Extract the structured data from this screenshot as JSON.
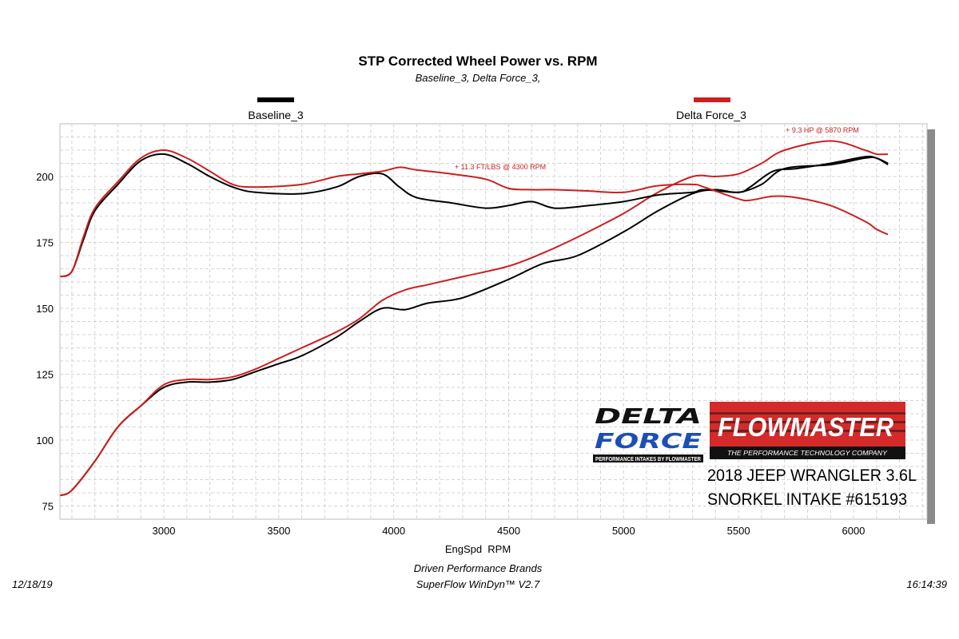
{
  "chart_data": {
    "type": "line",
    "title": "STP Corrected Wheel Power vs. RPM",
    "subtitle": "Baseline_3, Delta Force_3,",
    "xlabel": "EngSpd  RPM",
    "ylabel": "",
    "xlim": [
      2548,
      6320
    ],
    "ylim": [
      70,
      220
    ],
    "grid": true,
    "legend_position": "top",
    "x_ticks": [
      "3000",
      "3500",
      "4000",
      "4500",
      "5000",
      "5500",
      "6000"
    ],
    "y_ticks": [
      "75",
      "100",
      "125",
      "150",
      "175",
      "200"
    ],
    "legend": [
      {
        "name": "Baseline_3",
        "color": "#000000"
      },
      {
        "name": "Delta Force_3",
        "color": "#cc1f1f"
      }
    ],
    "series": [
      {
        "name": "Baseline_3",
        "color": "#000000",
        "curve": "torque",
        "x": [
          2550,
          2600,
          2650,
          2700,
          2800,
          2900,
          3000,
          3100,
          3200,
          3300,
          3400,
          3600,
          3750,
          3850,
          3950,
          4025,
          4100,
          4250,
          4400,
          4500,
          4600,
          4700,
          4850,
          5000,
          5150,
          5300,
          5350,
          5500,
          5550,
          5650,
          5750,
          5900,
          6050,
          6100,
          6150
        ],
        "y": [
          162,
          164,
          176,
          187,
          197,
          206,
          208.5,
          205,
          200,
          196,
          194,
          193.5,
          196,
          200,
          201,
          196,
          192,
          190,
          188,
          189,
          190.5,
          188,
          189,
          190.5,
          193,
          194,
          195,
          194,
          196,
          202,
          203,
          205,
          207.5,
          207,
          205
        ]
      },
      {
        "name": "Delta Force_3",
        "color": "#cc1f1f",
        "curve": "torque",
        "x": [
          2550,
          2600,
          2650,
          2700,
          2800,
          2900,
          3000,
          3100,
          3200,
          3300,
          3400,
          3600,
          3750,
          3850,
          3950,
          4025,
          4100,
          4250,
          4400,
          4500,
          4600,
          4700,
          4850,
          5000,
          5150,
          5300,
          5350,
          5500,
          5550,
          5650,
          5750,
          5900,
          6050,
          6100,
          6150
        ],
        "y": [
          162,
          164,
          177,
          188,
          198,
          207,
          210,
          207,
          202,
          197,
          196,
          197,
          200,
          201,
          202,
          203.5,
          202.5,
          201,
          199,
          195.5,
          195,
          195,
          194.5,
          194,
          196.5,
          197,
          196,
          191.5,
          191,
          192.5,
          192,
          189,
          183,
          180,
          178
        ]
      },
      {
        "name": "Baseline_3",
        "color": "#000000",
        "curve": "power",
        "x": [
          2550,
          2600,
          2700,
          2800,
          2900,
          3000,
          3100,
          3200,
          3300,
          3400,
          3500,
          3600,
          3750,
          3850,
          3950,
          4050,
          4150,
          4300,
          4500,
          4650,
          4800,
          5000,
          5150,
          5300,
          5400,
          5500,
          5600,
          5700,
          5900,
          6050,
          6100,
          6150
        ],
        "y": [
          79,
          81,
          92,
          105,
          113,
          120,
          122,
          122,
          123,
          126,
          129,
          132,
          139,
          145,
          150,
          149.5,
          152,
          154,
          161,
          167,
          170,
          179,
          187,
          193.5,
          195,
          194,
          197,
          203,
          204.5,
          207,
          207,
          204.5
        ]
      },
      {
        "name": "Delta Force_3",
        "color": "#cc1f1f",
        "curve": "power",
        "x": [
          2550,
          2600,
          2700,
          2800,
          2900,
          3000,
          3100,
          3200,
          3300,
          3400,
          3500,
          3600,
          3750,
          3850,
          3950,
          4050,
          4150,
          4300,
          4500,
          4650,
          4800,
          5000,
          5150,
          5300,
          5400,
          5500,
          5600,
          5700,
          5900,
          6050,
          6100,
          6150
        ],
        "y": [
          79,
          81,
          92,
          105,
          113,
          121,
          123,
          123,
          124,
          127,
          131,
          135,
          141,
          146,
          153,
          157,
          159,
          162,
          166,
          171,
          177,
          186,
          194,
          200,
          200,
          201,
          205,
          210,
          213.5,
          210,
          208.5,
          208.5
        ]
      }
    ],
    "annotations": [
      {
        "text": "+ 11.3 FT/LBS @ 4300 RPM",
        "x": 4300,
        "y": 203,
        "color": "#cc1f1f"
      },
      {
        "text": "+ 9.3 HP @ 5870 RPM",
        "x": 5870,
        "y": 217,
        "color": "#cc1f1f"
      }
    ]
  },
  "logos": {
    "delta_force": {
      "line1": "DELTA",
      "line2": "FORCE",
      "tagline": "PERFORMANCE INTAKES BY FLOWMASTER"
    },
    "flowmaster": {
      "name": "FLOWMASTER",
      "tagline": "THE PERFORMANCE TECHNOLOGY COMPANY"
    }
  },
  "vehicle": {
    "line1": "2018 JEEP WRANGLER 3.6L",
    "line2": "SNORKEL INTAKE #615193"
  },
  "footer": {
    "date": "12/18/19",
    "time": "16:14:39",
    "company": "Driven Performance Brands",
    "software": "SuperFlow WinDyn™  V2.7"
  }
}
